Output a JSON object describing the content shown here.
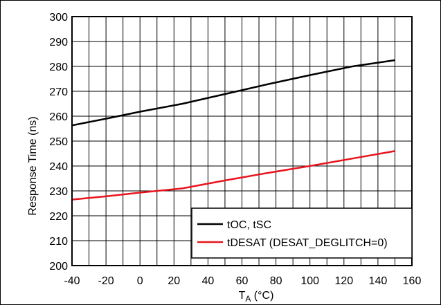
{
  "chart_data": {
    "type": "line",
    "xlabel": "T",
    "xlabel_sub": "A",
    "xlabel_unit": " (°C)",
    "ylabel": "Response Time (ns)",
    "xlim": [
      -40,
      160
    ],
    "ylim": [
      200,
      300
    ],
    "x_ticks": [
      -40,
      -20,
      0,
      20,
      40,
      60,
      80,
      100,
      120,
      140,
      160
    ],
    "y_ticks": [
      200,
      210,
      220,
      230,
      240,
      250,
      260,
      270,
      280,
      290,
      300
    ],
    "x_grid_step": 10,
    "grid": true,
    "legend_position": "bottom-right",
    "colors": {
      "series_1": "#000000",
      "series_2": "#e8141c"
    },
    "series": [
      {
        "name": "tOC, tSC",
        "color": "#000000",
        "x": [
          -40,
          -20,
          0,
          25,
          50,
          75,
          100,
          125,
          150
        ],
        "y": [
          256.3,
          259.0,
          261.8,
          265.0,
          268.9,
          272.8,
          276.5,
          280.0,
          282.5
        ]
      },
      {
        "name": "tDESAT (DESAT_DEGLITCH=0)",
        "color": "#e8141c",
        "x": [
          -40,
          -20,
          0,
          25,
          50,
          75,
          100,
          125,
          150
        ],
        "y": [
          226.5,
          227.8,
          229.3,
          231.0,
          234.2,
          237.2,
          240.0,
          243.0,
          246.0
        ]
      }
    ]
  }
}
